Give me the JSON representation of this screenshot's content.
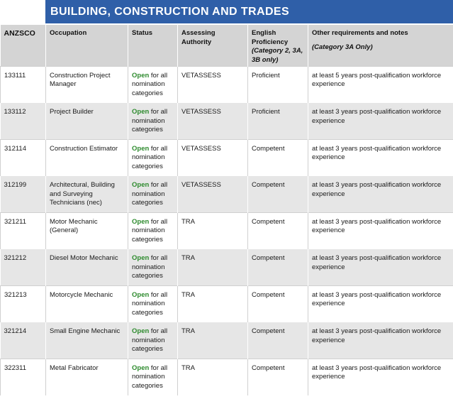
{
  "header": {
    "title": "BUILDING, CONSTRUCTION AND TRADES"
  },
  "columns": {
    "anzsco": "ANZSCO",
    "occupation": "Occupation",
    "status": "Status",
    "authority": "Assessing Authority",
    "english": "English Proficiency",
    "english_sub": "(Category 2, 3A, 3B only)",
    "notes": "Other requirements and notes",
    "notes_sub": "(Category 3A Only)"
  },
  "status_parts": {
    "open": "Open",
    "rest": " for all nomination categories"
  },
  "rows": [
    {
      "anzsco": "133111",
      "occupation": "Construction Project Manager",
      "authority": "VETASSESS",
      "english": "Proficient",
      "notes": "at least 5 years post-qualification workforce experience"
    },
    {
      "anzsco": "133112",
      "occupation": "Project Builder",
      "authority": "VETASSESS",
      "english": "Proficient",
      "notes": "at least 3 years post-qualification workforce experience"
    },
    {
      "anzsco": "312114",
      "occupation": "Construction Estimator",
      "authority": "VETASSESS",
      "english": "Competent",
      "notes": "at least 3 years post-qualification workforce experience"
    },
    {
      "anzsco": "312199",
      "occupation": "Architectural, Building and Surveying Technicians (nec)",
      "authority": "VETASSESS",
      "english": "Competent",
      "notes": "at least 3 years post-qualification workforce experience"
    },
    {
      "anzsco": "321211",
      "occupation": "Motor Mechanic (General)",
      "authority": "TRA",
      "english": "Competent",
      "notes": "at least 3 years post-qualification workforce experience"
    },
    {
      "anzsco": "321212",
      "occupation": "Diesel Motor Mechanic",
      "authority": "TRA",
      "english": "Competent",
      "notes": "at least 3 years post-qualification workforce experience"
    },
    {
      "anzsco": "321213",
      "occupation": "Motorcycle Mechanic",
      "authority": "TRA",
      "english": "Competent",
      "notes": "at least 3 years post-qualification workforce experience"
    },
    {
      "anzsco": "321214",
      "occupation": "Small Engine Mechanic",
      "authority": "TRA",
      "english": "Competent",
      "notes": "at least 3 years post-qualification workforce experience"
    },
    {
      "anzsco": "322311",
      "occupation": "Metal Fabricator",
      "authority": "TRA",
      "english": "Competent",
      "notes": "at least 3 years post-qualification workforce experience"
    }
  ],
  "colors": {
    "banner": "#2f5fa8",
    "open": "#2e8b2e",
    "header_bg": "#d4d4d4",
    "stripe": "#e6e6e6"
  }
}
